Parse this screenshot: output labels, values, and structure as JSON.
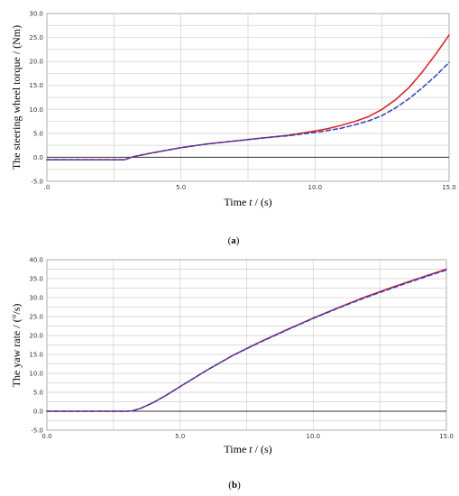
{
  "chart_data": [
    {
      "type": "line",
      "id": "a",
      "caption_letter": "a",
      "ylabel": "The steering wheel torque / (Nm)",
      "xlabel_prefix": "Time ",
      "xlabel_var": "t",
      "xlabel_suffix": " / (s)",
      "xlim": [
        0,
        15
      ],
      "ylim": [
        -5,
        30
      ],
      "x_ticks": [
        0,
        2.5,
        5,
        7.5,
        10,
        12.5,
        15
      ],
      "x_tick_labels": [
        ".0",
        "",
        "5.0",
        "",
        "10.0",
        "",
        "15.0"
      ],
      "y_ticks": [
        -5,
        -2.5,
        0,
        2.5,
        5,
        7.5,
        10,
        12.5,
        15,
        17.5,
        20,
        22.5,
        25,
        27.5,
        30
      ],
      "y_tick_labels": [
        "-5.0",
        "",
        "0.0",
        "",
        "5.0",
        "",
        "10.0",
        "",
        "15.0",
        "",
        "20.0",
        "",
        "25.0",
        "",
        "30.0"
      ],
      "grid": true,
      "zero_line": true,
      "series": [
        {
          "color": "#e41a1c",
          "style": "solid",
          "x": [
            0,
            1,
            2,
            2.9,
            3.0,
            3.2,
            4,
            5,
            6,
            7,
            8,
            9,
            10,
            10.5,
            11,
            11.5,
            12,
            12.5,
            13,
            13.5,
            14,
            14.5,
            15
          ],
          "y": [
            -0.5,
            -0.5,
            -0.5,
            -0.5,
            -0.3,
            0.1,
            1.0,
            2.0,
            2.8,
            3.4,
            4.0,
            4.6,
            5.5,
            6.0,
            6.7,
            7.5,
            8.5,
            10.0,
            12.0,
            14.5,
            17.8,
            21.5,
            25.5
          ]
        },
        {
          "color": "#2b3fbf",
          "style": "dashed",
          "x": [
            0,
            1,
            2,
            2.9,
            3.0,
            3.2,
            4,
            5,
            6,
            7,
            8,
            9,
            10,
            10.5,
            11,
            11.5,
            12,
            12.5,
            13,
            13.5,
            14,
            14.5,
            15
          ],
          "y": [
            -0.5,
            -0.5,
            -0.5,
            -0.5,
            -0.3,
            0.1,
            1.0,
            2.0,
            2.8,
            3.4,
            4.0,
            4.5,
            5.2,
            5.6,
            6.1,
            6.8,
            7.6,
            8.7,
            10.3,
            12.2,
            14.5,
            17.0,
            19.8
          ]
        }
      ]
    },
    {
      "type": "line",
      "id": "b",
      "caption_letter": "b",
      "ylabel": "The yaw rate / (°/s)",
      "xlabel_prefix": "Time ",
      "xlabel_var": "t",
      "xlabel_suffix": " / (s)",
      "xlim": [
        0,
        15
      ],
      "ylim": [
        -5,
        40
      ],
      "x_ticks": [
        0,
        2.5,
        5,
        7.5,
        10,
        12.5,
        15
      ],
      "x_tick_labels": [
        "0.0",
        "",
        "5.0",
        "",
        "10.0",
        "",
        "15.0"
      ],
      "y_ticks": [
        -5,
        -2.5,
        0,
        2.5,
        5,
        7.5,
        10,
        12.5,
        15,
        17.5,
        20,
        22.5,
        25,
        27.5,
        30,
        32.5,
        35,
        37.5,
        40
      ],
      "y_tick_labels": [
        "-5.0",
        "",
        "0.0",
        "",
        "5.0",
        "",
        "10.0",
        "",
        "15.0",
        "",
        "20.0",
        "",
        "25.0",
        "",
        "30.0",
        "",
        "35.0",
        "",
        "40.0"
      ],
      "grid": true,
      "zero_line": true,
      "series": [
        {
          "color": "#e41a1c",
          "style": "solid",
          "x": [
            0,
            1,
            2,
            3,
            3.2,
            3.5,
            4,
            4.5,
            5,
            6,
            7,
            8,
            9,
            10,
            11,
            12,
            13,
            14,
            15
          ],
          "y": [
            0,
            0,
            0,
            0,
            0.1,
            0.7,
            2.3,
            4.3,
            6.5,
            10.8,
            14.8,
            18.3,
            21.5,
            24.6,
            27.5,
            30.3,
            32.8,
            35.2,
            37.5
          ]
        },
        {
          "color": "#2b3fbf",
          "style": "dashed",
          "x": [
            0,
            1,
            2,
            3,
            3.2,
            3.5,
            4,
            4.5,
            5,
            6,
            7,
            8,
            9,
            10,
            11,
            12,
            13,
            14,
            15
          ],
          "y": [
            0,
            0,
            0,
            0,
            0.1,
            0.7,
            2.3,
            4.3,
            6.5,
            10.8,
            14.8,
            18.2,
            21.4,
            24.5,
            27.4,
            30.1,
            32.6,
            35.0,
            37.3
          ]
        }
      ]
    }
  ]
}
